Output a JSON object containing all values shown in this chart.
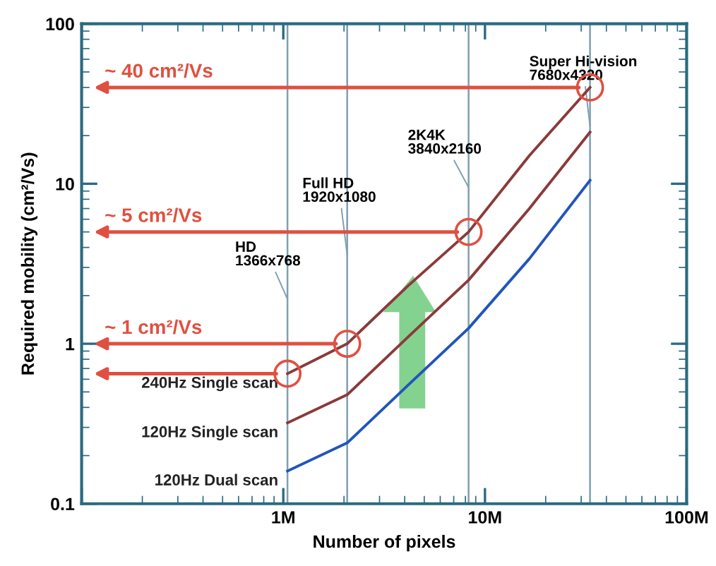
{
  "chart_data": {
    "type": "line",
    "xlabel": "Number of pixels",
    "ylabel": "Required mobility (cm²/Vs)",
    "log": "xy",
    "grid": false,
    "marker": "none",
    "line_style": "solid",
    "xlim": [
      100000,
      100000000
    ],
    "ylim": [
      0.1,
      100
    ],
    "xticks": [
      {
        "value": 100000,
        "label": null
      },
      {
        "value": 1000000,
        "label": "1M"
      },
      {
        "value": 10000000,
        "label": "10M"
      },
      {
        "value": 100000000,
        "label": "100M"
      }
    ],
    "yticks": [
      0.1,
      1,
      10,
      100
    ],
    "series": [
      {
        "name": "240Hz Single scan",
        "color": "#8b3a3a",
        "x": [
          1049000,
          2074000,
          4150000,
          8294000,
          16600000,
          33180000
        ],
        "values": [
          0.65,
          1.0,
          2.3,
          5,
          15,
          40
        ]
      },
      {
        "name": "120Hz Single scan",
        "color": "#8b3a3a",
        "x": [
          1049000,
          2074000,
          4150000,
          8294000,
          16600000,
          33180000
        ],
        "values": [
          0.32,
          0.48,
          1.1,
          2.5,
          7,
          21
        ]
      },
      {
        "name": "120Hz Dual scan",
        "color": "#2255bb",
        "x": [
          1049000,
          2074000,
          4150000,
          8294000,
          16600000,
          33180000
        ],
        "values": [
          0.16,
          0.24,
          0.55,
          1.25,
          3.4,
          10.5
        ]
      },
      {
        "type": "scatter",
        "marker": "circle",
        "color": "#e05040",
        "x": [
          1049000,
          2074000,
          8294000,
          33180000
        ],
        "values": [
          0.65,
          1.0,
          5,
          40
        ]
      }
    ],
    "ref_lines": [
      {
        "axis": "x",
        "value": 1049000,
        "label": "HD\n1366x768",
        "color": "#7f9fb0"
      },
      {
        "axis": "x",
        "value": 2074000,
        "label": "Full HD\n1920x1080",
        "color": "#7f9fb0"
      },
      {
        "axis": "x",
        "value": 8294000,
        "label": "2K4K\n3840x2160",
        "color": "#7f9fb0"
      },
      {
        "axis": "x",
        "value": 33180000,
        "label": "Super Hi-vision\n7680x4320",
        "color": "#7f9fb0"
      }
    ],
    "annotations": [
      "~ 40 cm²/Vs",
      "~ 5 cm²/Vs",
      "~ 1 cm²/Vs"
    ]
  }
}
